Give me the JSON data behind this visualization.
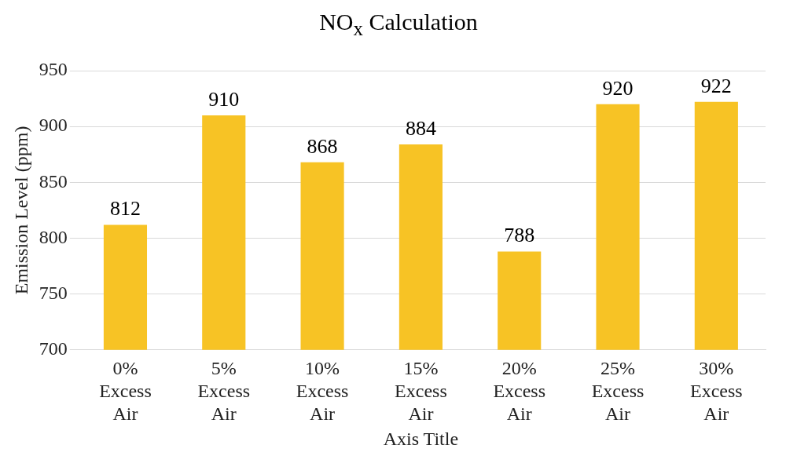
{
  "chart_data": {
    "type": "bar",
    "title": "NO$_{x}$ Calculation",
    "xlabel": "Axis Title",
    "ylabel": "Emission Level (ppm)",
    "categories": [
      "0% Excess Air",
      "5% Excess Air",
      "10% Excess Air",
      "15% Excess Air",
      "20% Excess Air",
      "25% Excess Air",
      "30% Excess Air"
    ],
    "values": [
      812,
      910,
      868,
      884,
      788,
      920,
      922
    ],
    "color": "#f7c325",
    "ylim": [
      700,
      950
    ],
    "yticks": [
      700,
      750,
      800,
      850,
      900,
      950
    ],
    "grid": "y",
    "data_labels": true,
    "legend": false
  }
}
